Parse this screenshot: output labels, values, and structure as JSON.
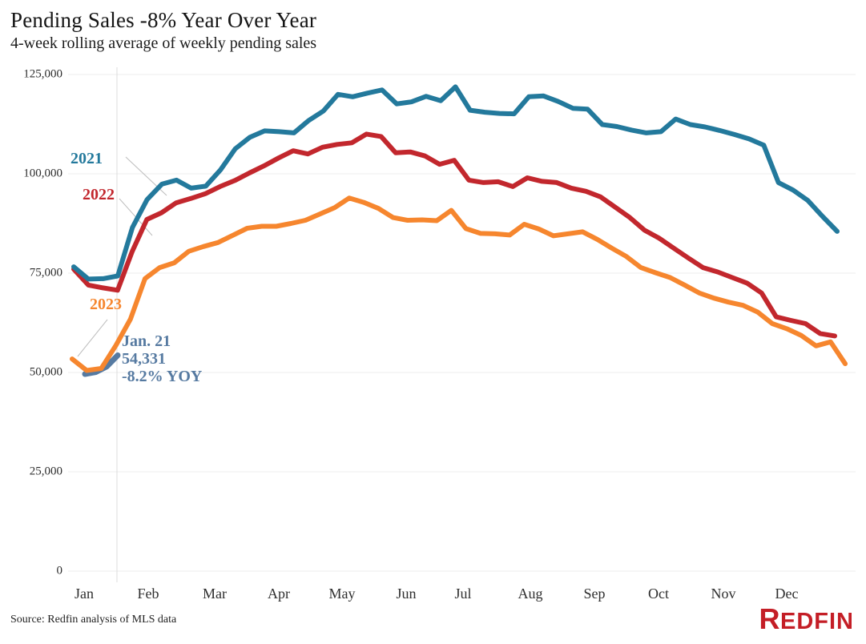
{
  "header": {
    "title": "Pending Sales -8% Year Over Year",
    "subtitle": "4-week rolling average of weekly pending sales"
  },
  "footer": {
    "source": "Source: Redfin analysis of MLS data",
    "logo_text": "REDFIN"
  },
  "chart_data": {
    "type": "line",
    "title": "Pending Sales -8% Year Over Year",
    "subtitle": "4-week rolling average of weekly pending sales",
    "ylabel": "",
    "xlabel": "",
    "ylim": [
      0,
      125000
    ],
    "grid": "horizontal",
    "y_ticks": [
      0,
      25000,
      50000,
      75000,
      100000,
      125000
    ],
    "y_tick_labels": [
      "0",
      "25,000",
      "50,000",
      "75,000",
      "100,000",
      "125,000"
    ],
    "x_tick_labels": [
      "Jan",
      "Feb",
      "Mar",
      "Apr",
      "May",
      "Jun",
      "Jul",
      "Aug",
      "Sep",
      "Oct",
      "Nov",
      "Dec"
    ],
    "vertical_marker": "latest-data-week",
    "series": [
      {
        "key": "latest",
        "label": "",
        "color": "#567aa1",
        "values": [
          49600,
          50100,
          51500,
          54331
        ]
      },
      {
        "key": "2023",
        "label": "2023",
        "color": "#f6862e",
        "values": [
          53400,
          50500,
          51000,
          56800,
          63400,
          73600,
          76400,
          77600,
          80500,
          81700,
          82700,
          84500,
          86300,
          86800,
          86800,
          87500,
          88300,
          89900,
          91500,
          93900,
          92800,
          91300,
          89000,
          88300,
          88400,
          88200,
          90800,
          86200,
          85000,
          84900,
          84600,
          87300,
          86100,
          84400,
          84900,
          85400,
          83500,
          81300,
          79200,
          76400,
          75100,
          73900,
          72000,
          70000,
          68700,
          67700,
          66900,
          65200,
          62300,
          61000,
          59300,
          56700,
          57700,
          52200
        ]
      },
      {
        "key": "2022",
        "label": "2022",
        "color": "#c2272d",
        "values": [
          76000,
          72000,
          71300,
          70700,
          80500,
          88500,
          90200,
          92700,
          93800,
          95000,
          96800,
          98300,
          100200,
          102000,
          104000,
          105800,
          105000,
          106700,
          107400,
          107800,
          110000,
          109400,
          105300,
          105500,
          104500,
          102400,
          103400,
          98400,
          97800,
          98000,
          96800,
          99000,
          98100,
          97800,
          96400,
          95600,
          94200,
          91600,
          89000,
          85800,
          83800,
          81300,
          78800,
          76400,
          75300,
          73900,
          72500,
          70000,
          64000,
          63100,
          62300,
          59800,
          59200
        ]
      },
      {
        "key": "2021",
        "label": "2021",
        "color": "#23799c",
        "values": [
          76600,
          73500,
          73600,
          74300,
          86500,
          93500,
          97400,
          98400,
          96400,
          96900,
          101000,
          106300,
          109200,
          110800,
          110600,
          110300,
          113400,
          115800,
          120000,
          119400,
          120300,
          121100,
          117600,
          118100,
          119500,
          118400,
          121900,
          116000,
          115500,
          115200,
          115100,
          119400,
          119600,
          118200,
          116500,
          116300,
          112400,
          111900,
          111000,
          110300,
          110600,
          113800,
          112400,
          111800,
          110900,
          109900,
          108800,
          107200,
          97800,
          95900,
          93300,
          89300,
          85500
        ]
      }
    ],
    "annotation": {
      "color": "#567aa1",
      "lines": [
        "Jan. 21",
        "54,331",
        "-8.2% YOY"
      ]
    },
    "legend_position": "inline-left-labels"
  }
}
